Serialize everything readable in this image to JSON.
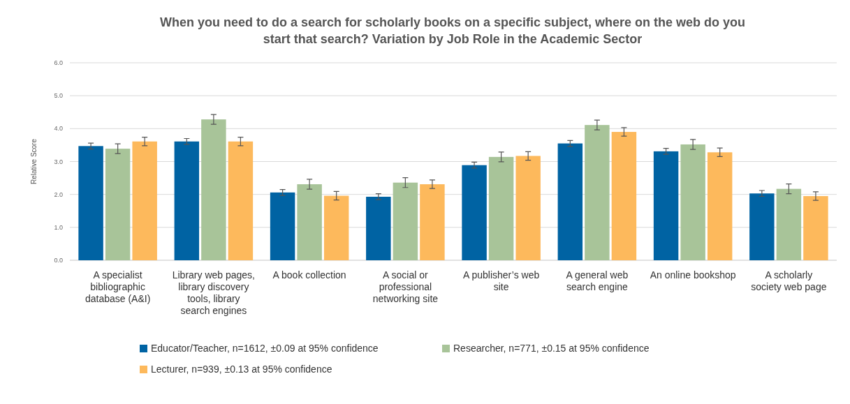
{
  "chart_data": {
    "type": "bar",
    "title": "When you need to do a search for scholarly books on a specific subject, where on the web do you start that search? Variation by Job Role in the Academic Sector",
    "ylabel": "Relative Score",
    "categories": [
      "A specialist bibliographic database (A&I)",
      "Library web pages, library discovery tools, library search engines",
      "A book collection",
      "A social or professional networking site",
      "A publisher’s web site",
      "A general web search engine",
      "An online bookshop",
      "A scholarly society web page"
    ],
    "series": [
      {
        "name": "Educator/Teacher, n=1612, ±0.09 at 95% confidence",
        "color": "#0063a3",
        "values": [
          3.47,
          3.61,
          2.06,
          1.93,
          2.89,
          3.55,
          3.31,
          2.03
        ],
        "errors": [
          0.09,
          0.09,
          0.09,
          0.09,
          0.09,
          0.09,
          0.09,
          0.09
        ]
      },
      {
        "name": "Researcher, n=771, ±0.15 at 95% confidence",
        "color": "#a8c499",
        "values": [
          3.39,
          4.28,
          2.31,
          2.36,
          3.14,
          4.11,
          3.52,
          2.17
        ],
        "errors": [
          0.15,
          0.15,
          0.15,
          0.15,
          0.15,
          0.15,
          0.15,
          0.15
        ]
      },
      {
        "name": "Lecturer, n=939, ±0.13 at 95% confidence",
        "color": "#fdb95c",
        "values": [
          3.61,
          3.61,
          1.96,
          2.31,
          3.17,
          3.9,
          3.28,
          1.95
        ],
        "errors": [
          0.13,
          0.13,
          0.13,
          0.13,
          0.13,
          0.13,
          0.13,
          0.13
        ]
      }
    ],
    "ylim": [
      0,
      6
    ],
    "yticks": [
      {
        "value": 0,
        "label": "0.0"
      },
      {
        "value": 1,
        "label": "1.0"
      },
      {
        "value": 2,
        "label": "2.0"
      },
      {
        "value": 3,
        "label": "3.0"
      },
      {
        "value": 4,
        "label": "4.0"
      },
      {
        "value": 5,
        "label": "5.0"
      },
      {
        "value": 6,
        "label": "6.0"
      }
    ],
    "grid": "y",
    "legend": "bottom"
  }
}
